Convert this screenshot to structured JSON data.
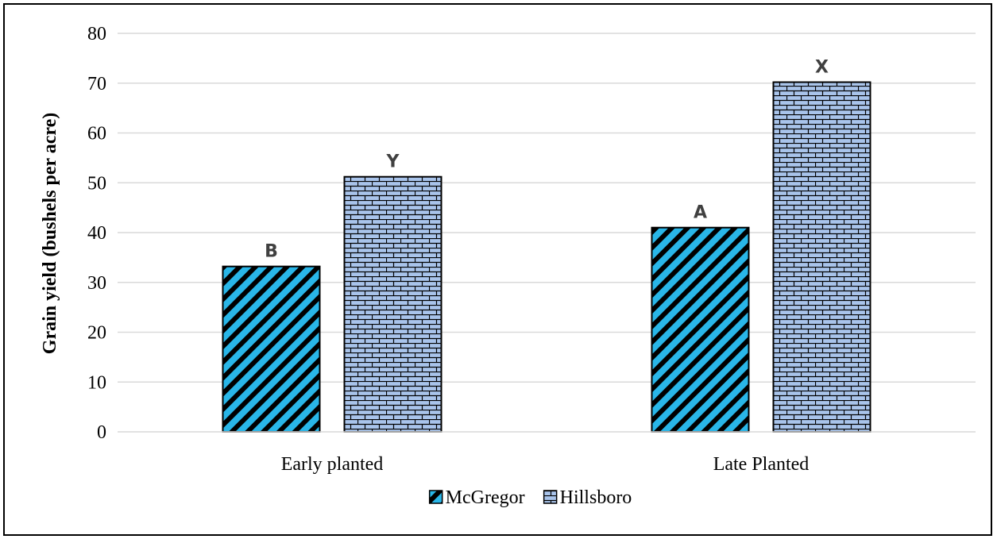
{
  "chart_data": {
    "type": "bar",
    "categories": [
      "Early planted",
      "Late Planted"
    ],
    "series": [
      {
        "name": "McGregor",
        "values": [
          33.2,
          41.0
        ],
        "letters": [
          "B",
          "A"
        ],
        "color": "#29B6E8",
        "pattern": "diagonal-stripes"
      },
      {
        "name": "Hillsboro",
        "values": [
          51.2,
          70.2
        ],
        "letters": [
          "Y",
          "X"
        ],
        "color": "#A9C4EB",
        "pattern": "brick"
      }
    ],
    "xlabel": "",
    "ylabel": "Grain yield (bushels per acre)",
    "ylim": [
      0,
      80
    ],
    "yticks": [
      0,
      10,
      20,
      30,
      40,
      50,
      60,
      70,
      80
    ],
    "grid": true,
    "legend_position": "bottom"
  }
}
